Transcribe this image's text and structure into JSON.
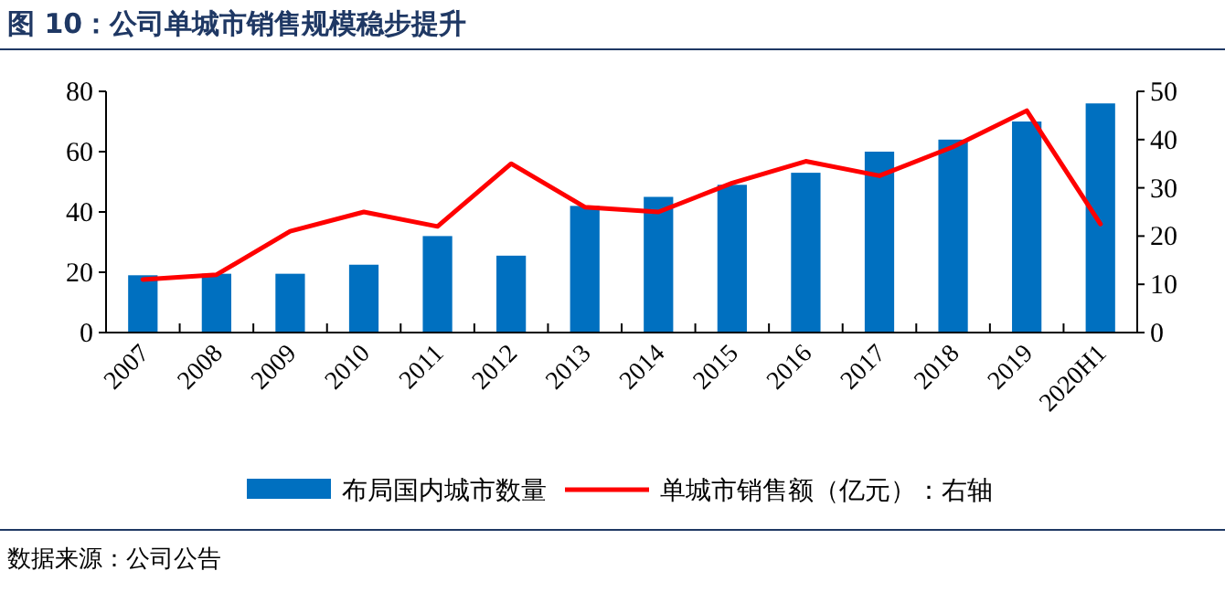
{
  "chart_data": {
    "type": "bar",
    "title": "图 10：公司单城市销售规模稳步提升",
    "categories": [
      "2007",
      "2008",
      "2009",
      "2010",
      "2011",
      "2012",
      "2013",
      "2014",
      "2015",
      "2016",
      "2017",
      "2018",
      "2019",
      "2020H1"
    ],
    "series": [
      {
        "name": "布局国内城市数量",
        "color": "#0070c0",
        "values": [
          19,
          19.5,
          19.5,
          22.5,
          32,
          25.5,
          42,
          45,
          49,
          53,
          60,
          64,
          70,
          76
        ]
      },
      {
        "name": "单城市销售额（亿元）：右轴",
        "type": "line",
        "axis": "y2",
        "color": "#ff0000",
        "values": [
          11,
          12,
          21,
          25,
          22,
          35,
          26,
          25,
          31,
          35.5,
          32.5,
          38.5,
          46,
          22.5
        ]
      }
    ],
    "ylim": [
      0,
      80
    ],
    "yticks": [
      0,
      20,
      40,
      60,
      80
    ],
    "y2lim": [
      0,
      50
    ],
    "y2ticks": [
      0,
      10,
      20,
      30,
      40,
      50
    ],
    "grid": false,
    "legend": "bottom",
    "marker": "none",
    "line_style": "solid",
    "annotations": [
      "数据来源：公司公告"
    ]
  }
}
